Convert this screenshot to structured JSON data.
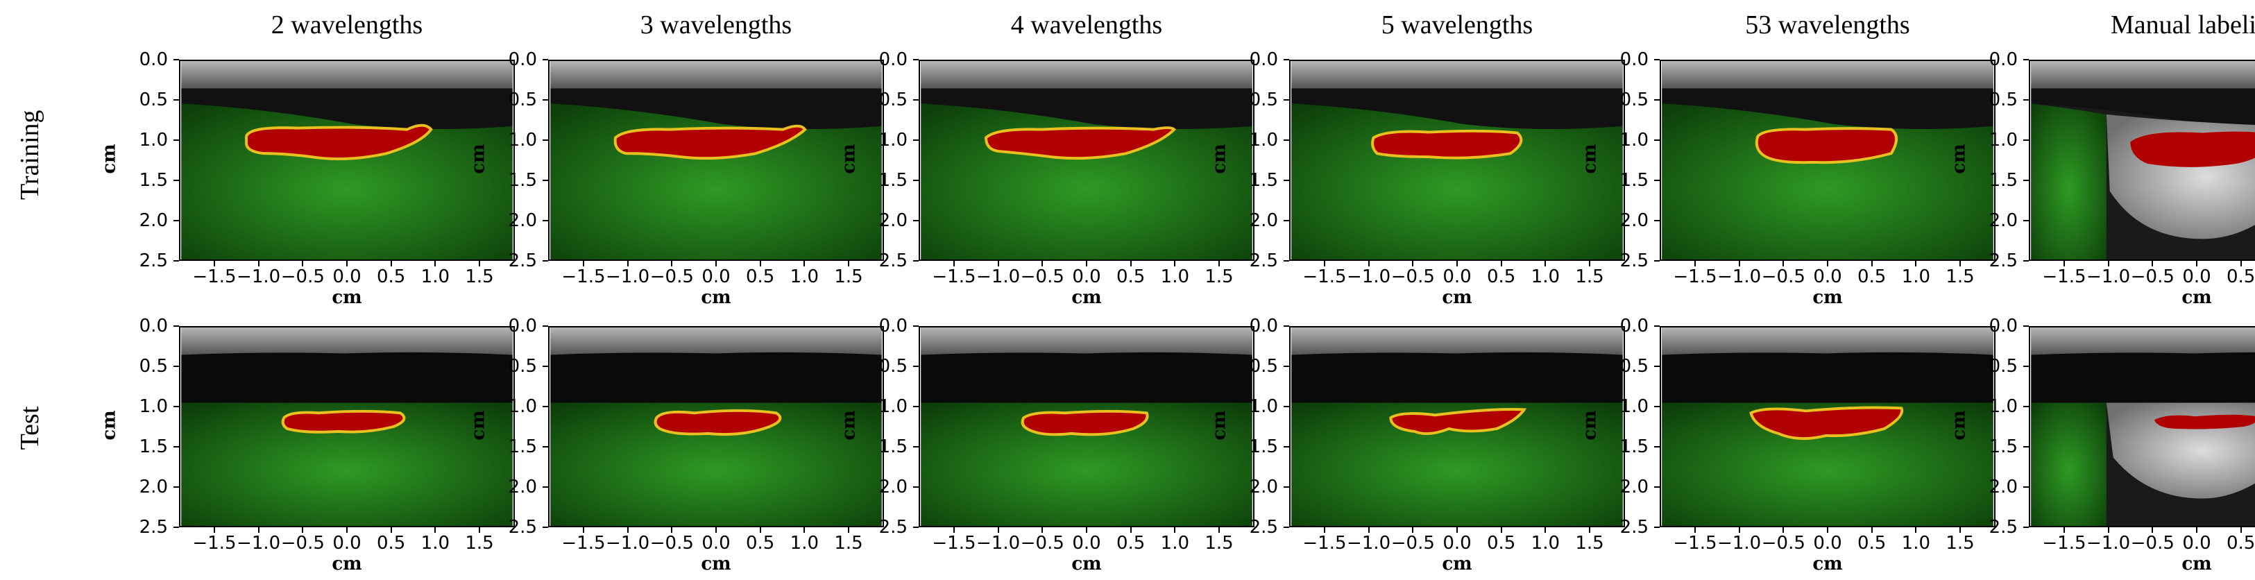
{
  "column_titles": [
    "2 wavelengths",
    "3 wavelengths",
    "4 wavelengths",
    "5 wavelengths",
    "53 wavelengths",
    "Manual labeling"
  ],
  "row_labels": [
    "Training",
    "Test"
  ],
  "axis": {
    "xlabel": "cm",
    "ylabel": "cm",
    "yticks": [
      "0.0",
      "0.5",
      "1.0",
      "1.5",
      "2.0",
      "2.5"
    ],
    "xticks": [
      "−1.5",
      "−1.0",
      "−0.5",
      "0.0",
      "0.5",
      "1.0",
      "1.5"
    ],
    "ytick_values": [
      0.0,
      0.5,
      1.0,
      1.5,
      2.0,
      2.5
    ],
    "xtick_values": [
      -1.5,
      -1.0,
      -0.5,
      0.0,
      0.5,
      1.0,
      1.5
    ],
    "xlim": [
      -1.9,
      1.9
    ],
    "ylim": [
      0.0,
      2.5
    ]
  },
  "colors": {
    "tissue_green": "#1f7a1a",
    "tumor_red": "#b00000",
    "contour_yellow": "#e8c020",
    "ultrasound_gray": "#9a9a9a"
  }
}
